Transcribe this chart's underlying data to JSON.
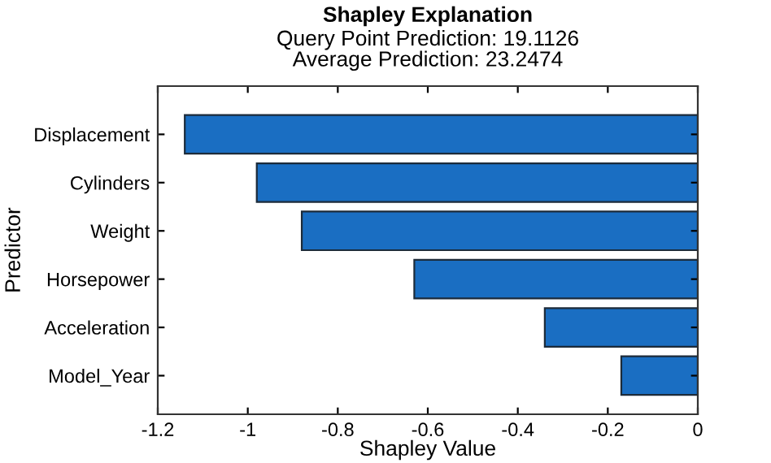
{
  "chart_data": {
    "type": "bar",
    "orientation": "horizontal",
    "title": "Shapley Explanation",
    "subtitle": "Query Point Prediction: 19.1126\nAverage Prediction: 23.2474",
    "xlabel": "Shapley Value",
    "ylabel": "Predictor",
    "categories": [
      "Displacement",
      "Cylinders",
      "Weight",
      "Horsepower",
      "Acceleration",
      "Model_Year"
    ],
    "values": [
      -1.14,
      -0.98,
      -0.88,
      -0.63,
      -0.34,
      -0.17
    ],
    "color": "#1a6ec2",
    "xlim": [
      -1.2,
      0
    ],
    "xticks": [
      -1.2,
      -1,
      -0.8,
      -0.6,
      -0.4,
      -0.2,
      0
    ],
    "grid": false
  }
}
